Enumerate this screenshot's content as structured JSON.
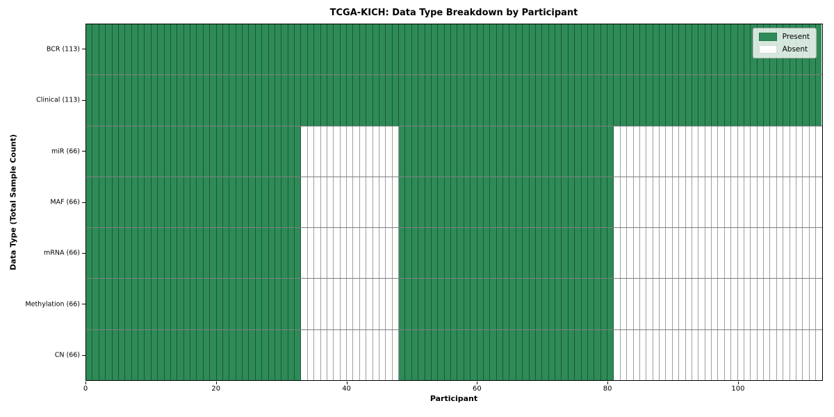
{
  "chart_data": {
    "type": "heatmap",
    "title": "TCGA-KICH: Data Type Breakdown by Participant",
    "xlabel": "Participant",
    "ylabel": "Data Type (Total Sample Count)",
    "xlim": [
      0,
      113
    ],
    "n_participants": 113,
    "x_ticks": [
      0,
      20,
      40,
      60,
      80,
      100
    ],
    "grid": "cell-borders",
    "legend_position": "upper-right",
    "rows": [
      {
        "label": "BCR (113)",
        "total_samples": 113,
        "present_ranges": [
          [
            0,
            113
          ]
        ]
      },
      {
        "label": "Clinical (113)",
        "total_samples": 113,
        "present_ranges": [
          [
            0,
            113
          ]
        ]
      },
      {
        "label": "miR (66)",
        "total_samples": 66,
        "present_ranges": [
          [
            0,
            33
          ],
          [
            48,
            81
          ]
        ]
      },
      {
        "label": "MAF (66)",
        "total_samples": 66,
        "present_ranges": [
          [
            0,
            33
          ],
          [
            48,
            81
          ]
        ]
      },
      {
        "label": "mRNA (66)",
        "total_samples": 66,
        "present_ranges": [
          [
            0,
            33
          ],
          [
            48,
            81
          ]
        ]
      },
      {
        "label": "Methylation (66)",
        "total_samples": 66,
        "present_ranges": [
          [
            0,
            33
          ],
          [
            48,
            81
          ]
        ]
      },
      {
        "label": "CN (66)",
        "total_samples": 66,
        "present_ranges": [
          [
            0,
            33
          ],
          [
            48,
            81
          ]
        ]
      }
    ],
    "legend": [
      {
        "label": "Present",
        "color": "#2e8b57"
      },
      {
        "label": "Absent",
        "color": "#ffffff"
      }
    ],
    "colors": {
      "present": "#2e8b57",
      "absent": "#ffffff",
      "cell_border": "rgba(0,0,0,0.38)",
      "spine": "#000000"
    }
  }
}
